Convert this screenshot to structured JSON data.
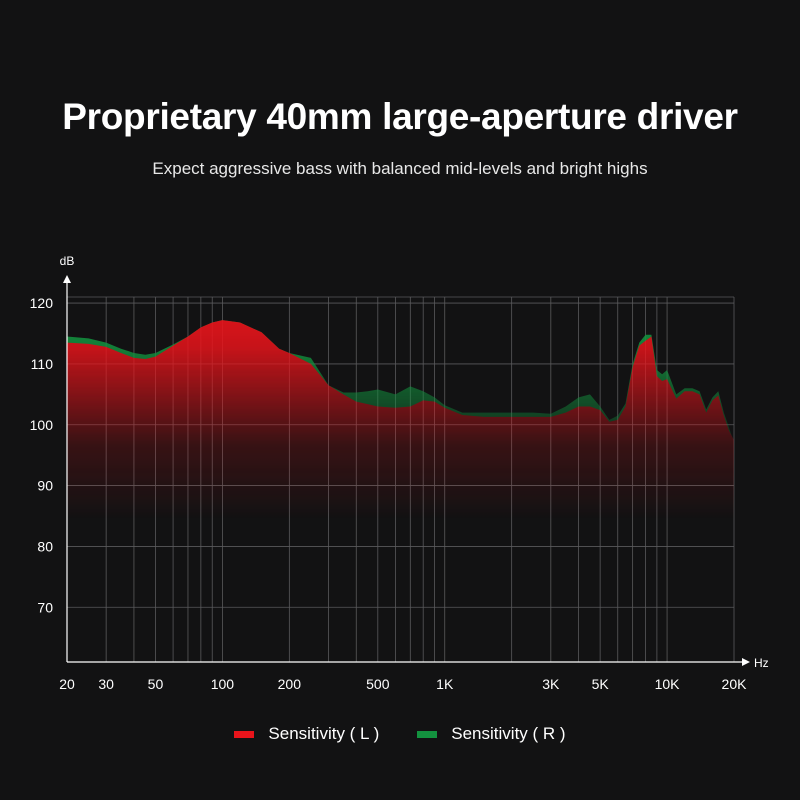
{
  "header": {
    "title": "Proprietary 40mm large-aperture driver",
    "subtitle": "Expect aggressive bass with balanced mid-levels and bright highs"
  },
  "chart_data": {
    "type": "area",
    "title": "Proprietary 40mm large-aperture driver",
    "subtitle": "Expect aggressive bass with balanced mid-levels and bright highs",
    "ylabel": "dB",
    "xlabel": "Hz",
    "x_scale": "log",
    "xlim": [
      20,
      20000
    ],
    "ylim": [
      61,
      121
    ],
    "yticks": [
      70,
      80,
      90,
      100,
      110,
      120
    ],
    "xticks": [
      {
        "value": 20,
        "label": "20"
      },
      {
        "value": 30,
        "label": "30"
      },
      {
        "value": 50,
        "label": "50"
      },
      {
        "value": 100,
        "label": "100"
      },
      {
        "value": 200,
        "label": "200"
      },
      {
        "value": 500,
        "label": "500"
      },
      {
        "value": 1000,
        "label": "1K"
      },
      {
        "value": 3000,
        "label": "3K"
      },
      {
        "value": 5000,
        "label": "5K"
      },
      {
        "value": 10000,
        "label": "10K"
      },
      {
        "value": 20000,
        "label": "20K"
      }
    ],
    "grid": true,
    "legend_position": "bottom",
    "series": [
      {
        "name": "Sensitivity ( L )",
        "color": "#e8141b",
        "x": [
          20,
          25,
          30,
          35,
          40,
          45,
          50,
          60,
          70,
          80,
          90,
          100,
          120,
          150,
          180,
          200,
          250,
          300,
          350,
          400,
          450,
          500,
          600,
          700,
          800,
          900,
          1000,
          1200,
          1500,
          2000,
          2500,
          3000,
          3500,
          4000,
          4500,
          5000,
          5500,
          6000,
          6500,
          7000,
          7500,
          8000,
          8500,
          9000,
          9500,
          10000,
          11000,
          12000,
          13000,
          14000,
          15000,
          16000,
          17000,
          18000,
          19000,
          20000
        ],
        "y": [
          113.5,
          113.3,
          112.8,
          111.8,
          111.0,
          110.8,
          111.2,
          113.0,
          114.5,
          116.0,
          116.8,
          117.2,
          116.8,
          115.2,
          112.5,
          111.8,
          110.0,
          106.5,
          105.0,
          103.8,
          103.4,
          103.0,
          102.8,
          103.0,
          104.0,
          103.8,
          102.8,
          101.6,
          101.3,
          101.3,
          101.3,
          101.3,
          102.0,
          103.0,
          103.0,
          102.4,
          100.5,
          100.8,
          103.0,
          109.5,
          113.0,
          113.8,
          114.5,
          108.0,
          107.2,
          107.5,
          104.3,
          105.5,
          105.5,
          105.0,
          102.0,
          104.0,
          104.8,
          101.5,
          99.0,
          97.5
        ]
      },
      {
        "name": "Sensitivity ( R )",
        "color": "#13923f",
        "x": [
          20,
          25,
          30,
          35,
          40,
          45,
          50,
          60,
          70,
          80,
          90,
          100,
          120,
          150,
          180,
          200,
          250,
          300,
          350,
          400,
          450,
          500,
          600,
          700,
          800,
          900,
          1000,
          1200,
          1500,
          2000,
          2500,
          3000,
          3500,
          4000,
          4500,
          5000,
          5500,
          6000,
          6500,
          7000,
          7500,
          8000,
          8500,
          9000,
          9500,
          10000,
          11000,
          12000,
          13000,
          14000,
          15000,
          16000,
          17000,
          18000,
          19000,
          20000
        ],
        "y": [
          114.5,
          114.2,
          113.5,
          112.5,
          111.8,
          111.5,
          111.8,
          113.2,
          114.5,
          116.0,
          116.8,
          117.2,
          116.8,
          115.2,
          112.5,
          111.8,
          111.0,
          106.5,
          105.3,
          105.3,
          105.5,
          105.8,
          105.0,
          106.3,
          105.5,
          104.5,
          103.2,
          102.0,
          102.0,
          102.0,
          102.0,
          101.8,
          103.0,
          104.5,
          105.0,
          103.0,
          100.8,
          101.5,
          103.5,
          110.0,
          113.5,
          114.8,
          114.8,
          109.0,
          108.3,
          109.0,
          105.0,
          106.0,
          106.0,
          105.5,
          102.5,
          104.5,
          105.5,
          102.0,
          99.5,
          97.0
        ]
      }
    ]
  }
}
